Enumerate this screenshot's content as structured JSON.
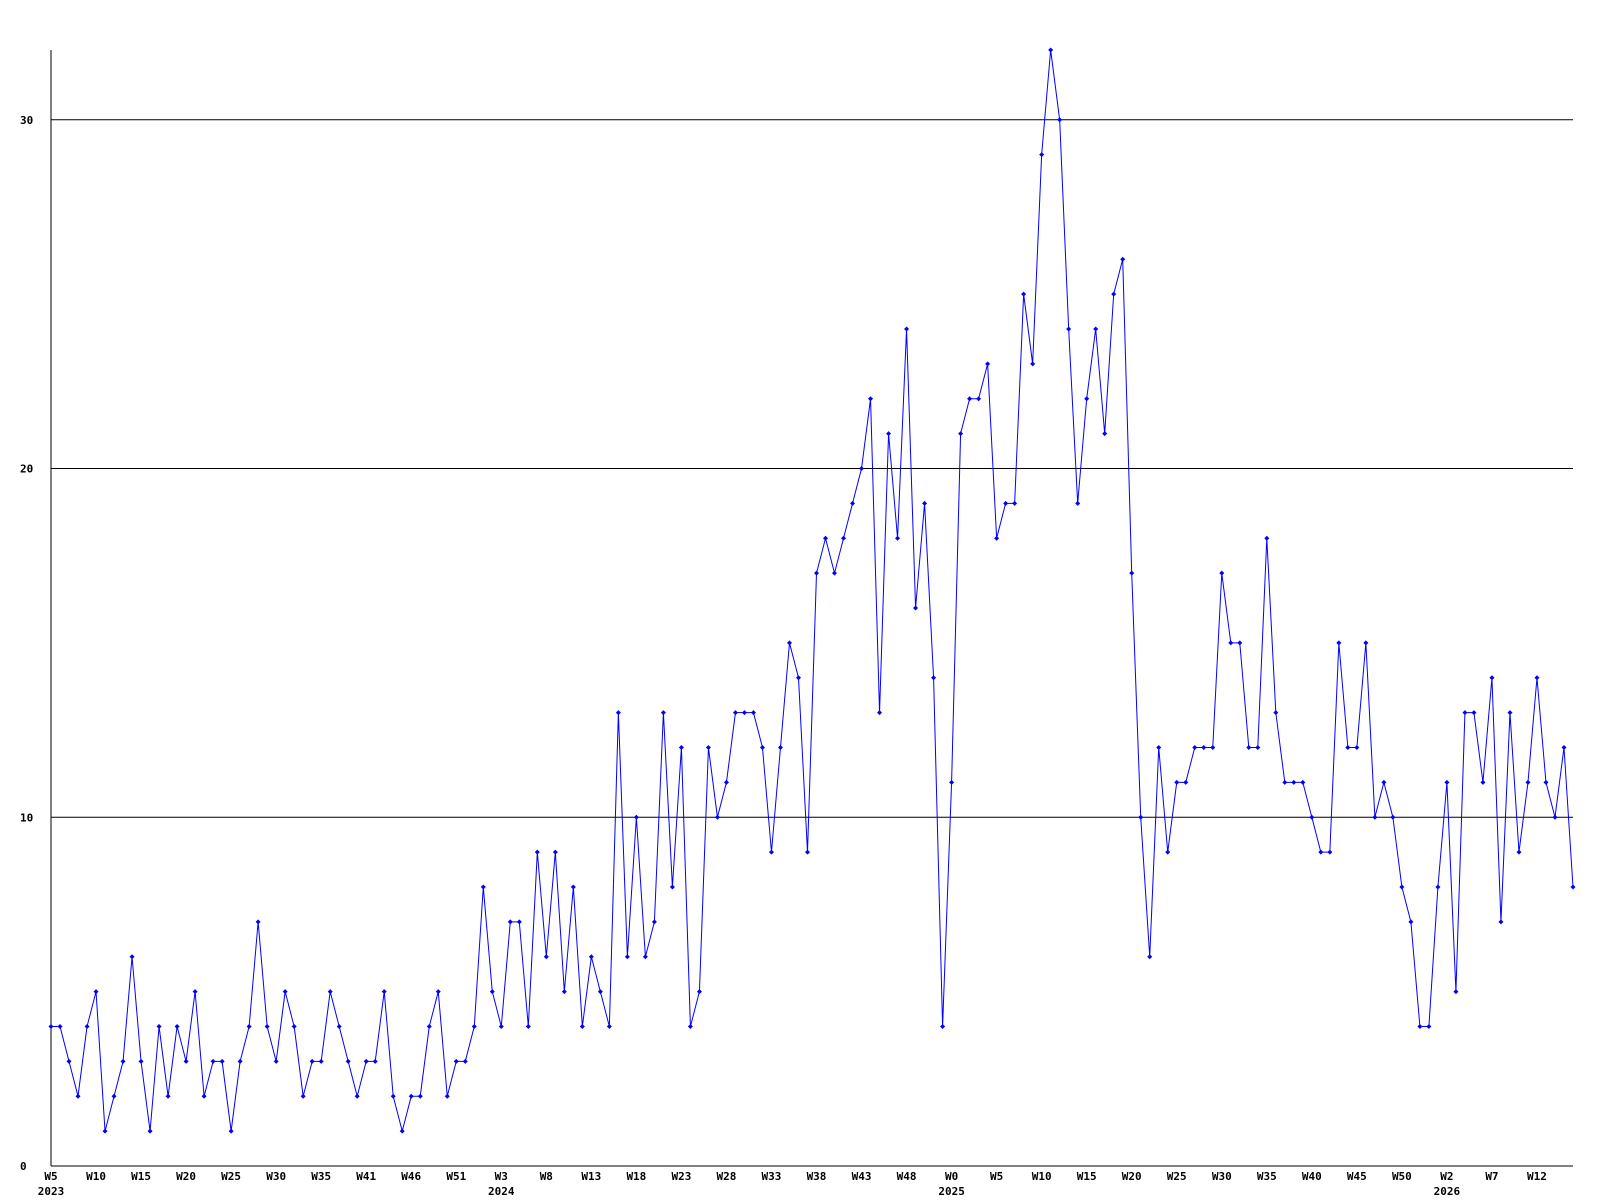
{
  "chart_data": {
    "type": "line",
    "categories": [
      "W5",
      null,
      null,
      null,
      null,
      "W10",
      null,
      null,
      null,
      null,
      "W15",
      null,
      null,
      null,
      null,
      "W20",
      null,
      null,
      null,
      null,
      "W25",
      null,
      null,
      null,
      null,
      "W30",
      null,
      null,
      null,
      null,
      "W35",
      null,
      null,
      null,
      null,
      "W41",
      null,
      null,
      null,
      null,
      "W46",
      null,
      null,
      null,
      null,
      "W51",
      null,
      null,
      null,
      null,
      "W3",
      null,
      null,
      null,
      null,
      "W8",
      null,
      null,
      null,
      null,
      "W13",
      null,
      null,
      null,
      null,
      "W18",
      null,
      null,
      null,
      null,
      "W23",
      null,
      null,
      null,
      null,
      "W28",
      null,
      null,
      null,
      null,
      "W33",
      null,
      null,
      null,
      null,
      "W38",
      null,
      null,
      null,
      null,
      "W43",
      null,
      null,
      null,
      null,
      "W48",
      null,
      null,
      null,
      null,
      "W0",
      null,
      null,
      null,
      null,
      "W5",
      null,
      null,
      null,
      null,
      "W10",
      null,
      null,
      null,
      null,
      "W15",
      null,
      null,
      null,
      null,
      "W20",
      null,
      null,
      null,
      null,
      "W25",
      null,
      null,
      null,
      null,
      "W30",
      null,
      null,
      null,
      null,
      "W35",
      null,
      null,
      null,
      null,
      "W40",
      null,
      null,
      null,
      null,
      "W45",
      null,
      null,
      null,
      null,
      "W50",
      null,
      null,
      null,
      null,
      "W2",
      null,
      null,
      null,
      null,
      "W7",
      null,
      null,
      null,
      null,
      "W12",
      null,
      null,
      null,
      null
    ],
    "category_years": [
      "2023",
      null,
      null,
      null,
      null,
      null,
      null,
      null,
      null,
      null,
      null,
      null,
      null,
      null,
      null,
      null,
      null,
      null,
      null,
      null,
      null,
      null,
      null,
      null,
      null,
      null,
      null,
      null,
      null,
      null,
      null,
      null,
      null,
      null,
      null,
      null,
      null,
      null,
      null,
      null,
      null,
      null,
      null,
      null,
      null,
      null,
      null,
      null,
      null,
      null,
      "2024",
      null,
      null,
      null,
      null,
      null,
      null,
      null,
      null,
      null,
      null,
      null,
      null,
      null,
      null,
      null,
      null,
      null,
      null,
      null,
      null,
      null,
      null,
      null,
      null,
      null,
      null,
      null,
      null,
      null,
      null,
      null,
      null,
      null,
      null,
      null,
      null,
      null,
      null,
      null,
      null,
      null,
      null,
      null,
      null,
      null,
      null,
      null,
      null,
      null,
      "2025",
      null,
      null,
      null,
      null,
      null,
      null,
      null,
      null,
      null,
      null,
      null,
      null,
      null,
      null,
      null,
      null,
      null,
      null,
      null,
      null,
      null,
      null,
      null,
      null,
      null,
      null,
      null,
      null,
      null,
      null,
      null,
      null,
      null,
      null,
      null,
      null,
      null,
      null,
      null,
      null,
      null,
      null,
      null,
      null,
      null,
      null,
      null,
      null,
      null,
      null,
      null,
      null,
      null,
      null,
      "2026",
      null,
      null,
      null,
      null,
      null,
      null,
      null,
      null,
      null,
      null,
      null,
      null,
      null,
      null
    ],
    "series": [
      {
        "color": "#0000ff",
        "values": [
          4,
          4,
          3,
          2,
          4,
          5,
          1,
          2,
          3,
          6,
          3,
          1,
          4,
          2,
          4,
          3,
          5,
          2,
          3,
          3,
          1,
          3,
          4,
          7,
          4,
          3,
          5,
          4,
          2,
          3,
          3,
          5,
          4,
          3,
          2,
          3,
          3,
          5,
          2,
          1,
          2,
          2,
          4,
          5,
          2,
          3,
          3,
          4,
          8,
          5,
          4,
          7,
          7,
          4,
          9,
          6,
          9,
          5,
          8,
          4,
          6,
          5,
          4,
          13,
          6,
          10,
          6,
          7,
          13,
          8,
          12,
          4,
          5,
          12,
          10,
          11,
          13,
          13,
          13,
          12,
          9,
          12,
          15,
          14,
          9,
          17,
          18,
          17,
          18,
          19,
          20,
          22,
          13,
          21,
          18,
          24,
          16,
          19,
          14,
          4,
          11,
          21,
          22,
          22,
          23,
          18,
          19,
          19,
          25,
          23,
          29,
          32,
          30,
          24,
          19,
          22,
          24,
          21,
          25,
          26,
          17,
          10,
          6,
          12,
          9,
          11,
          11,
          12,
          12,
          12,
          17,
          15,
          15,
          12,
          12,
          18,
          13,
          11,
          11,
          11,
          10,
          9,
          9,
          15,
          12,
          12,
          15,
          10,
          11,
          10,
          8,
          7,
          4,
          4,
          8,
          11,
          5,
          13,
          13,
          11,
          14,
          7,
          13,
          9,
          11,
          14,
          11,
          10,
          12,
          8
        ]
      }
    ],
    "ylim": [
      0,
      32
    ],
    "yticks": [
      0,
      10,
      20,
      30
    ],
    "grid": true
  }
}
